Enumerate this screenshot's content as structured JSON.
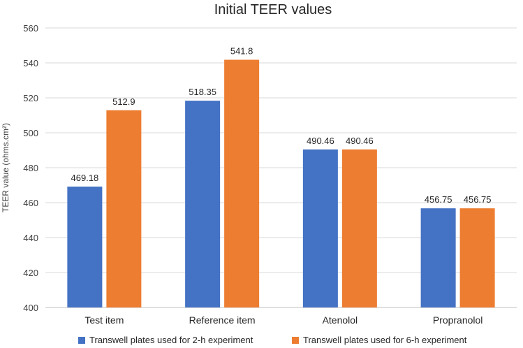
{
  "chart_data": {
    "type": "bar",
    "title": "Initial TEER values",
    "xlabel": "",
    "ylabel": "TEER value (ohms.cm²)",
    "ylim": [
      400,
      560
    ],
    "yticks": [
      400,
      420,
      440,
      460,
      480,
      500,
      520,
      540,
      560
    ],
    "categories": [
      "Test item",
      "Reference item",
      "Atenolol",
      "Propranolol"
    ],
    "series": [
      {
        "name": "Transwell plates used for 2-h experiment",
        "color": "#4472c4",
        "values": [
          469.18,
          518.35,
          490.46,
          456.75
        ],
        "labels": [
          "469.18",
          "518.35",
          "490.46",
          "456.75"
        ]
      },
      {
        "name": "Transwell plates used for 6-h experiment",
        "color": "#ed7d31",
        "values": [
          512.9,
          541.8,
          490.46,
          456.75
        ],
        "labels": [
          "512.9",
          "541.8",
          "490.46",
          "456.75"
        ]
      }
    ],
    "grid": true,
    "legend": "bottom"
  }
}
